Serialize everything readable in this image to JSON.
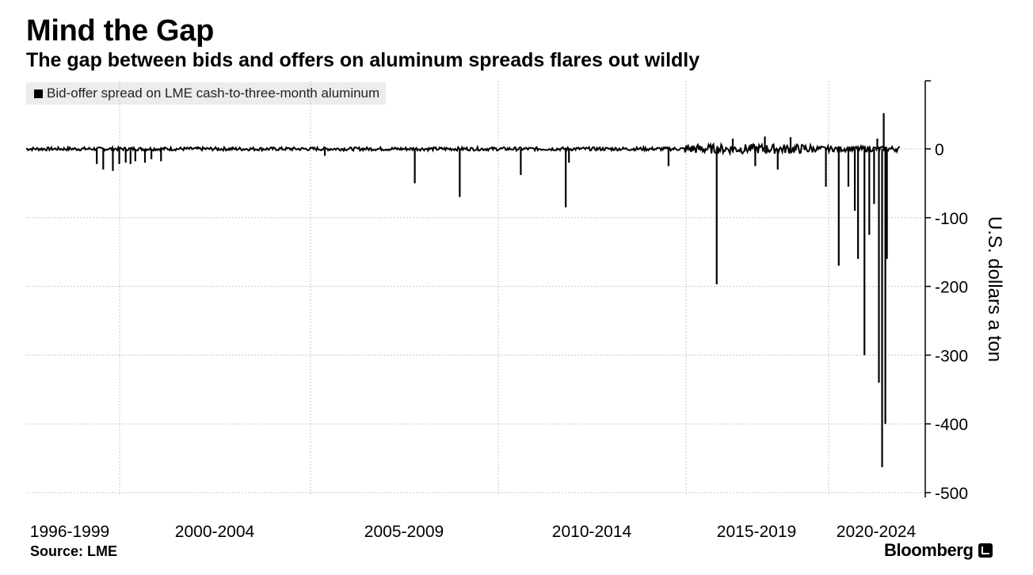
{
  "header": {
    "title": "Mind the Gap",
    "subtitle": "The gap between bids and offers on aluminum spreads flares out wildly"
  },
  "legend": {
    "label": "Bid-offer spread on LME cash-to-three-month aluminum"
  },
  "footer": {
    "source": "Source: LME",
    "brand": "Bloomberg"
  },
  "colors": {
    "series": "#000000",
    "grid": "#c8c8c8",
    "legend_bg": "#ececec"
  },
  "chart_data": {
    "type": "line",
    "title": "Mind the Gap",
    "subtitle": "The gap between bids and offers on aluminum spreads flares out wildly",
    "ylabel": "U.S. dollars a ton",
    "xlabel": "",
    "ylim": [
      -500,
      100
    ],
    "yticks": [
      0,
      -100,
      -200,
      -300,
      -400,
      -500
    ],
    "ytick_labels": [
      "0",
      "-100",
      "-200",
      "-300",
      "-400",
      "-500"
    ],
    "y_axis_side": "right",
    "xlim": [
      1996.0,
      2023.5
    ],
    "x_category_labels": [
      {
        "label": "1996-1999",
        "x": 1997.5
      },
      {
        "label": "2000-2004",
        "x": 2002.5
      },
      {
        "label": "2005-2009",
        "x": 2007.5
      },
      {
        "label": "2010-2014",
        "x": 2012.5
      },
      {
        "label": "2015-2019",
        "x": 2017.5
      },
      {
        "label": "2020-2024",
        "x": 2021.8
      }
    ],
    "grid": true,
    "legend_position": "top-left",
    "series": [
      {
        "name": "Bid-offer spread on LME cash-to-three-month aluminum",
        "baseline": 0,
        "points": [
          {
            "x": 1998.2,
            "y": -22
          },
          {
            "x": 1998.4,
            "y": -30
          },
          {
            "x": 1998.7,
            "y": -32
          },
          {
            "x": 1998.9,
            "y": -22
          },
          {
            "x": 1999.1,
            "y": -20
          },
          {
            "x": 1999.25,
            "y": -22
          },
          {
            "x": 1999.4,
            "y": -18
          },
          {
            "x": 1999.7,
            "y": -20
          },
          {
            "x": 1999.9,
            "y": -15
          },
          {
            "x": 2000.2,
            "y": -18
          },
          {
            "x": 2005.3,
            "y": -10
          },
          {
            "x": 2008.1,
            "y": -50
          },
          {
            "x": 2009.5,
            "y": -70
          },
          {
            "x": 2011.4,
            "y": -38
          },
          {
            "x": 2012.8,
            "y": -85
          },
          {
            "x": 2012.9,
            "y": -20
          },
          {
            "x": 2016.0,
            "y": -25
          },
          {
            "x": 2017.5,
            "y": -197
          },
          {
            "x": 2018.7,
            "y": -25
          },
          {
            "x": 2019.4,
            "y": -30
          },
          {
            "x": 2020.9,
            "y": -55
          },
          {
            "x": 2021.3,
            "y": -170
          },
          {
            "x": 2021.6,
            "y": -55
          },
          {
            "x": 2021.8,
            "y": -90
          },
          {
            "x": 2021.9,
            "y": -160
          },
          {
            "x": 2022.1,
            "y": -300
          },
          {
            "x": 2022.25,
            "y": -125
          },
          {
            "x": 2022.4,
            "y": -80
          },
          {
            "x": 2022.55,
            "y": -340
          },
          {
            "x": 2022.65,
            "y": -463
          },
          {
            "x": 2022.75,
            "y": -400
          },
          {
            "x": 2022.8,
            "y": -160
          },
          {
            "x": 2022.7,
            "y": 52
          },
          {
            "x": 2022.5,
            "y": 15
          },
          {
            "x": 2018.0,
            "y": 15
          },
          {
            "x": 2019.0,
            "y": 18
          },
          {
            "x": 2019.8,
            "y": 17
          }
        ]
      }
    ]
  }
}
